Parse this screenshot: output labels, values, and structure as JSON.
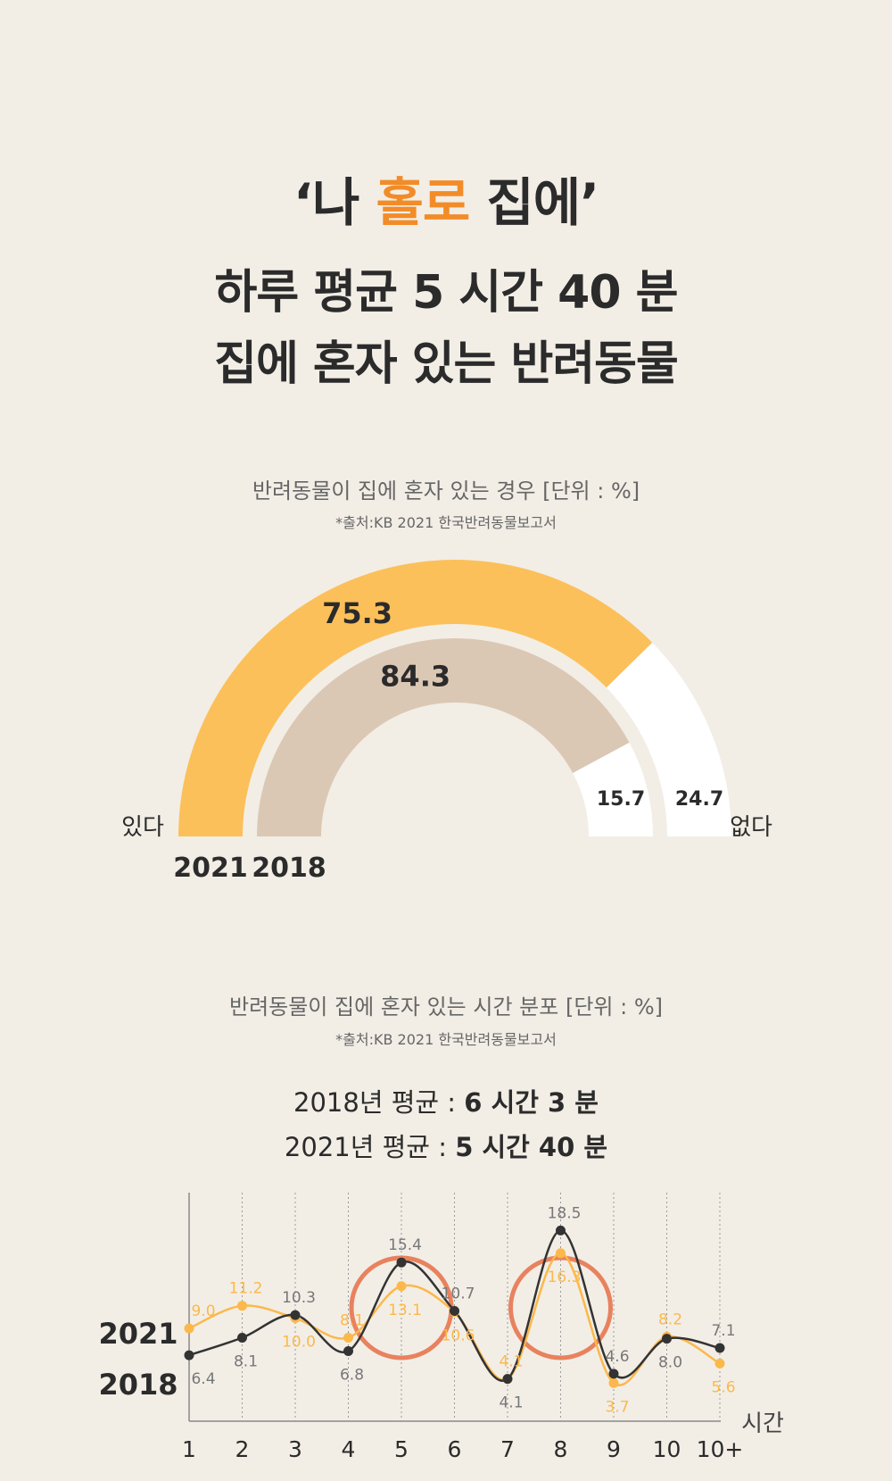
{
  "header": {
    "title_open_quote": "‘",
    "title_part1": "나 ",
    "title_accent": "홀로",
    "title_part2": " 집에",
    "title_close_quote": "’",
    "headline_line1": "하루 평균 5 시간 40 분",
    "headline_line2": "집에 혼자 있는 반려동물",
    "accent_color": "#f28c28"
  },
  "chart1": {
    "title": "반려동물이 집에 혼자 있는 경우 [단위 : %]",
    "source": "*출처:KB 2021 한국반려동물보고서",
    "label_yes": "있다",
    "label_no": "없다"
  },
  "chart2": {
    "title": "반려동물이 집에 혼자 있는 시간 분포 [단위 : %]",
    "source": "*출처:KB 2021 한국반려동물보고서",
    "avg2018_prefix": "2018년 평균 : ",
    "avg2018_value": "6 시간 3 분",
    "avg2021_prefix": "2021년 평균 : ",
    "avg2021_value": "5 시간 40 분",
    "x_axis_label": "시간"
  },
  "chart_data": [
    {
      "type": "pie",
      "variant": "semicircle-gauge",
      "categories": [
        "있다",
        "없다"
      ],
      "series": [
        {
          "name": "2021",
          "values": [
            75.3,
            24.7
          ],
          "labels": [
            "75.3",
            "24.7"
          ],
          "color": "#fcc05a"
        },
        {
          "name": "2018",
          "values": [
            84.3,
            15.7
          ],
          "labels": [
            "84.3",
            "15.7"
          ],
          "color": "#dbc8b4"
        }
      ],
      "remainder_color": "#ffffff"
    },
    {
      "type": "line",
      "x": [
        "1",
        "2",
        "3",
        "4",
        "5",
        "6",
        "7",
        "8",
        "9",
        "10",
        "10+"
      ],
      "xlabel": "시간",
      "ylim": [
        0,
        22
      ],
      "series": [
        {
          "name": "2021",
          "values": [
            9.0,
            11.2,
            10.0,
            8.1,
            13.1,
            10.6,
            4.1,
            16.3,
            3.7,
            8.2,
            5.6
          ],
          "labels": [
            "9.0",
            "11.2",
            "10.0",
            "8.1",
            "13.1",
            "10.6",
            "4.1",
            "16.3",
            "3.7",
            "8.2",
            "5.6"
          ],
          "color": "#fcb84a"
        },
        {
          "name": "2018",
          "values": [
            6.4,
            8.1,
            10.3,
            6.8,
            15.4,
            10.7,
            4.1,
            18.5,
            4.6,
            8.0,
            7.1
          ],
          "labels": [
            "6.4",
            "8.1",
            "10.3",
            "6.8",
            "15.4",
            "10.7",
            "4.1",
            "18.5",
            "4.6",
            "8.0",
            "7.1"
          ],
          "color": "#333333"
        }
      ],
      "highlighted_x": [
        "5",
        "8"
      ],
      "highlight_color": "#e8825e"
    }
  ]
}
